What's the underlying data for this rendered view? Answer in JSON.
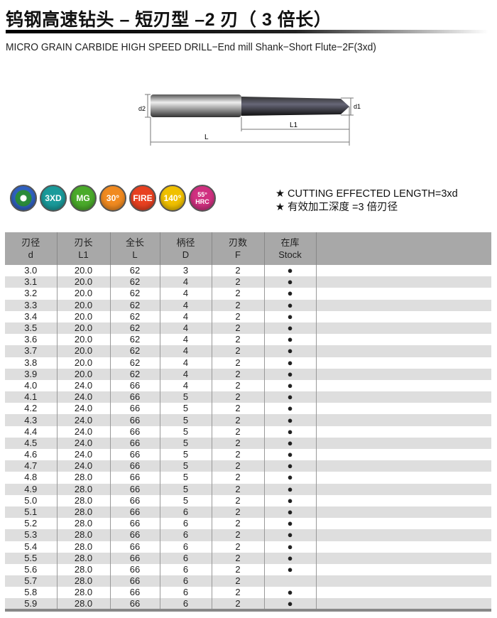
{
  "header": {
    "title": "钨钢高速钻头 – 短刃型 –2 刃（ 3 倍长）",
    "subtitle": "MICRO GRAIN CARBIDE HIGH SPEED DRILL−End mill Shank−Short Flute−2F(3xd)"
  },
  "drawing": {
    "labels": {
      "d2": "d2",
      "d1": "d1",
      "L": "L",
      "L1": "L1"
    }
  },
  "icons": [
    {
      "name": "flute-cross-section-icon",
      "label": "",
      "color": "#2a8a3a"
    },
    {
      "name": "3xd-icon",
      "label": "3XD",
      "color": "#1a9a9a"
    },
    {
      "name": "mg-icon",
      "label": "MG",
      "color": "#4aaa2a"
    },
    {
      "name": "helix-30-icon",
      "label": "30°",
      "color": "#f08a20"
    },
    {
      "name": "fire-icon",
      "label": "FIRE",
      "color": "#e84020"
    },
    {
      "name": "point-angle-140-icon",
      "label": "140°",
      "color": "#f0c000"
    },
    {
      "name": "hrc-55-icon",
      "label": "55° HRC",
      "color": "#d03080"
    }
  ],
  "notes": [
    "★ CUTTING EFFECTED LENGTH=3xd",
    "★ 有效加工深度 =3 倍刃径"
  ],
  "table": {
    "headers": [
      {
        "cn": "刃径",
        "en": "d"
      },
      {
        "cn": "刃长",
        "en": "L1"
      },
      {
        "cn": "全长",
        "en": "L"
      },
      {
        "cn": "柄径",
        "en": "D"
      },
      {
        "cn": "刃数",
        "en": "F"
      },
      {
        "cn": "在库",
        "en": "Stock"
      }
    ],
    "stock_symbol": "●",
    "rows": [
      [
        "3.0",
        "20.0",
        "62",
        "3",
        "2",
        true
      ],
      [
        "3.1",
        "20.0",
        "62",
        "4",
        "2",
        true
      ],
      [
        "3.2",
        "20.0",
        "62",
        "4",
        "2",
        true
      ],
      [
        "3.3",
        "20.0",
        "62",
        "4",
        "2",
        true
      ],
      [
        "3.4",
        "20.0",
        "62",
        "4",
        "2",
        true
      ],
      [
        "3.5",
        "20.0",
        "62",
        "4",
        "2",
        true
      ],
      [
        "3.6",
        "20.0",
        "62",
        "4",
        "2",
        true
      ],
      [
        "3.7",
        "20.0",
        "62",
        "4",
        "2",
        true
      ],
      [
        "3.8",
        "20.0",
        "62",
        "4",
        "2",
        true
      ],
      [
        "3.9",
        "20.0",
        "62",
        "4",
        "2",
        true
      ],
      [
        "4.0",
        "24.0",
        "66",
        "4",
        "2",
        true
      ],
      [
        "4.1",
        "24.0",
        "66",
        "5",
        "2",
        true
      ],
      [
        "4.2",
        "24.0",
        "66",
        "5",
        "2",
        true
      ],
      [
        "4.3",
        "24.0",
        "66",
        "5",
        "2",
        true
      ],
      [
        "4.4",
        "24.0",
        "66",
        "5",
        "2",
        true
      ],
      [
        "4.5",
        "24.0",
        "66",
        "5",
        "2",
        true
      ],
      [
        "4.6",
        "24.0",
        "66",
        "5",
        "2",
        true
      ],
      [
        "4.7",
        "24.0",
        "66",
        "5",
        "2",
        true
      ],
      [
        "4.8",
        "28.0",
        "66",
        "5",
        "2",
        true
      ],
      [
        "4.9",
        "28.0",
        "66",
        "5",
        "2",
        true
      ],
      [
        "5.0",
        "28.0",
        "66",
        "5",
        "2",
        true
      ],
      [
        "5.1",
        "28.0",
        "66",
        "6",
        "2",
        true
      ],
      [
        "5.2",
        "28.0",
        "66",
        "6",
        "2",
        true
      ],
      [
        "5.3",
        "28.0",
        "66",
        "6",
        "2",
        true
      ],
      [
        "5.4",
        "28.0",
        "66",
        "6",
        "2",
        true
      ],
      [
        "5.5",
        "28.0",
        "66",
        "6",
        "2",
        true
      ],
      [
        "5.6",
        "28.0",
        "66",
        "6",
        "2",
        true
      ],
      [
        "5.7",
        "28.0",
        "66",
        "6",
        "2",
        false
      ],
      [
        "5.8",
        "28.0",
        "66",
        "6",
        "2",
        true
      ],
      [
        "5.9",
        "28.0",
        "66",
        "6",
        "2",
        true
      ]
    ]
  }
}
